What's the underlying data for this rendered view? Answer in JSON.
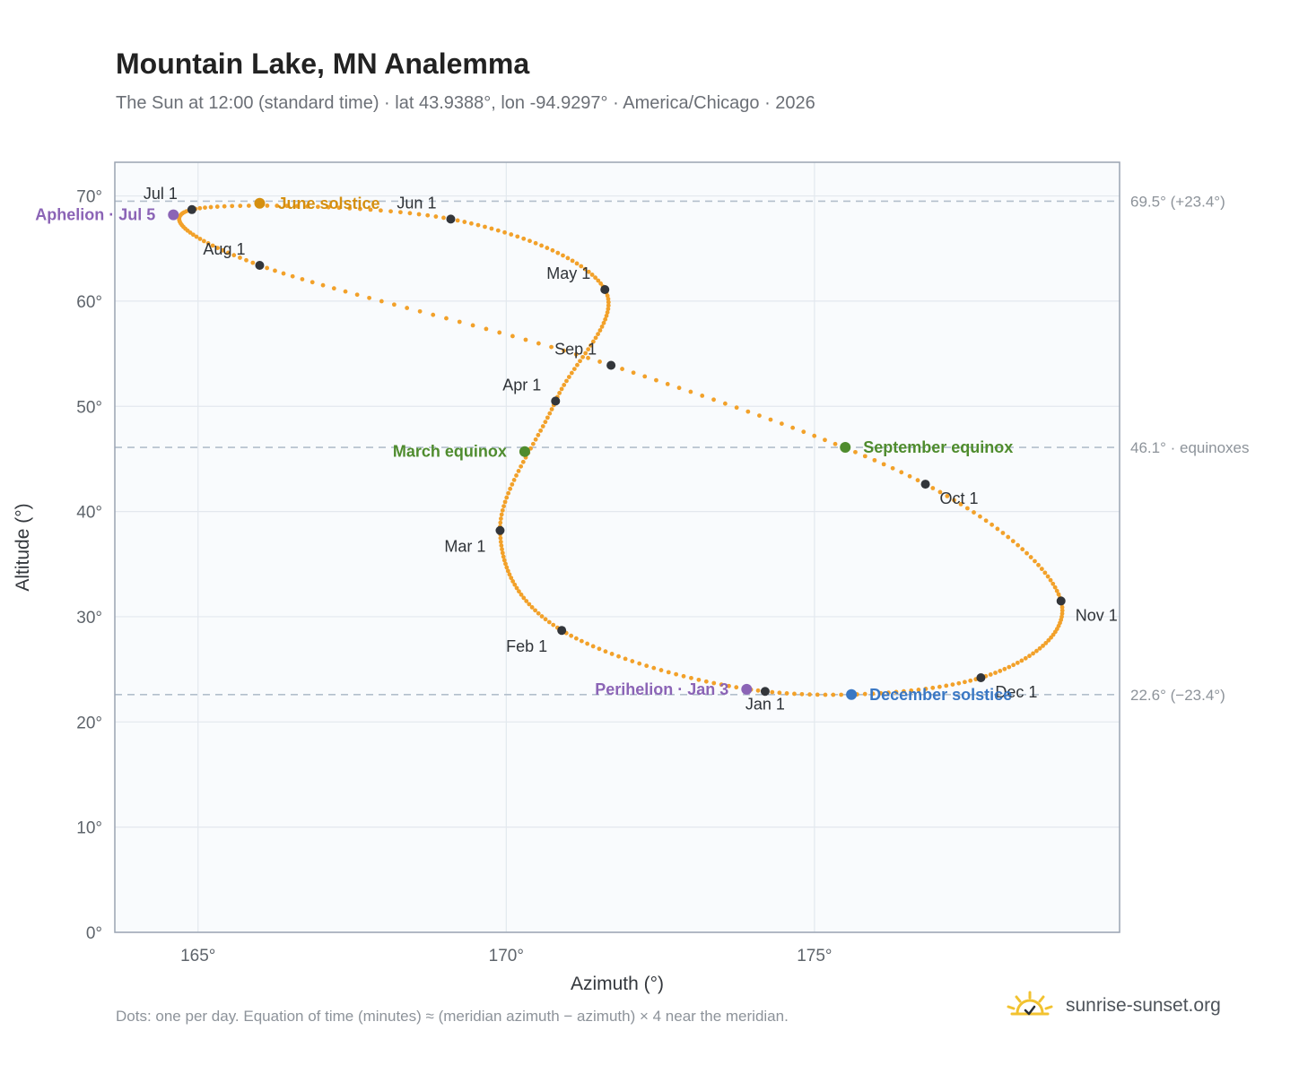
{
  "header": {
    "title": "Mountain Lake, MN Analemma",
    "subtitle": "The Sun at 12:00 (standard time) · lat 43.9388°, lon -94.9297° · America/Chicago · 2026"
  },
  "footer": {
    "note": "Dots: one per day. Equation of time (minutes) ≈ (meridian azimuth − azimuth) × 4 near the meridian.",
    "brand": "sunrise-sunset.org",
    "brand_icon": "sun-logo-icon"
  },
  "colors": {
    "path": "#f2a12a",
    "month_marker": "#33363b",
    "solstice_june": "#d48f10",
    "equinox": "#4f8c2e",
    "solstice_december": "#3a78c4",
    "apsis": "#8b64b6",
    "reference_line": "#b3bfcc",
    "grid": "#e3e8ee",
    "plot_background": "#f9fbfd",
    "plot_border": "#9aa4b2"
  },
  "chart_data": {
    "type": "scatter",
    "xlabel": "Azimuth (°)",
    "ylabel": "Altitude (°)",
    "xlim": [
      163.65,
      179.95
    ],
    "ylim": [
      0,
      73.2
    ],
    "x_ticks": [
      165,
      170,
      175
    ],
    "y_ticks": [
      0,
      10,
      20,
      30,
      40,
      50,
      60,
      70
    ],
    "x_tick_labels": [
      "165°",
      "170°",
      "175°"
    ],
    "y_tick_labels": [
      "0°",
      "10°",
      "20°",
      "30°",
      "40°",
      "50°",
      "60°",
      "70°"
    ],
    "grid": true,
    "path_anchors": [
      {
        "date": "Jan 1",
        "az": 174.2,
        "alt": 22.9
      },
      {
        "date": "Feb 1",
        "az": 170.9,
        "alt": 28.7
      },
      {
        "date": "Mar 1",
        "az": 169.9,
        "alt": 38.2
      },
      {
        "date": "Apr 1",
        "az": 170.8,
        "alt": 50.5
      },
      {
        "date": "May 1",
        "az": 171.6,
        "alt": 61.1
      },
      {
        "date": "Jun 1",
        "az": 169.1,
        "alt": 67.8
      },
      {
        "date": "Jul 1",
        "az": 164.9,
        "alt": 68.7
      },
      {
        "date": "Aug 1",
        "az": 166.0,
        "alt": 63.4
      },
      {
        "date": "Sep 1",
        "az": 171.7,
        "alt": 53.9
      },
      {
        "date": "Oct 1",
        "az": 176.8,
        "alt": 42.6
      },
      {
        "date": "Nov 1",
        "az": 179.0,
        "alt": 31.5
      },
      {
        "date": "Dec 1",
        "az": 177.7,
        "alt": 24.2
      },
      {
        "date": "Jan 1",
        "az": 174.2,
        "alt": 22.9
      }
    ],
    "months": [
      {
        "label": "Jan 1",
        "az": 174.2,
        "alt": 22.9,
        "label_pos": "below"
      },
      {
        "label": "Feb 1",
        "az": 170.9,
        "alt": 28.7,
        "label_pos": "below-left"
      },
      {
        "label": "Mar 1",
        "az": 169.9,
        "alt": 38.2,
        "label_pos": "below-left"
      },
      {
        "label": "Apr 1",
        "az": 170.8,
        "alt": 50.5,
        "label_pos": "above-left"
      },
      {
        "label": "May 1",
        "az": 171.6,
        "alt": 61.1,
        "label_pos": "above-left"
      },
      {
        "label": "Jun 1",
        "az": 169.1,
        "alt": 67.8,
        "label_pos": "above-left"
      },
      {
        "label": "Jul 1",
        "az": 164.9,
        "alt": 68.7,
        "label_pos": "above-left"
      },
      {
        "label": "Aug 1",
        "az": 166.0,
        "alt": 63.4,
        "label_pos": "above-left"
      },
      {
        "label": "Sep 1",
        "az": 171.7,
        "alt": 53.9,
        "label_pos": "above-left"
      },
      {
        "label": "Oct 1",
        "az": 176.8,
        "alt": 42.6,
        "label_pos": "below-right"
      },
      {
        "label": "Nov 1",
        "az": 179.0,
        "alt": 31.5,
        "label_pos": "below-right"
      },
      {
        "label": "Dec 1",
        "az": 177.7,
        "alt": 24.2,
        "label_pos": "below-right"
      }
    ],
    "events": [
      {
        "label": "June solstice",
        "az": 166.0,
        "alt": 69.3,
        "color": "#d48f10",
        "label_pos": "right"
      },
      {
        "label": "Aphelion · Jul 5",
        "az": 164.6,
        "alt": 68.2,
        "color": "#8b64b6",
        "label_pos": "left"
      },
      {
        "label": "March equinox",
        "az": 170.3,
        "alt": 45.7,
        "color": "#4f8c2e",
        "label_pos": "left"
      },
      {
        "label": "September equinox",
        "az": 175.5,
        "alt": 46.1,
        "color": "#4f8c2e",
        "label_pos": "right"
      },
      {
        "label": "Perihelion · Jan 3",
        "az": 173.9,
        "alt": 23.1,
        "color": "#8b64b6",
        "label_pos": "left"
      },
      {
        "label": "December solstice",
        "az": 175.6,
        "alt": 22.6,
        "color": "#3a78c4",
        "label_pos": "right"
      }
    ],
    "reference_lines": [
      {
        "alt": 69.5,
        "label": "69.5° (+23.4°)"
      },
      {
        "alt": 46.1,
        "label": "46.1° · equinoxes"
      },
      {
        "alt": 22.6,
        "label": "22.6° (−23.4°)"
      }
    ]
  }
}
